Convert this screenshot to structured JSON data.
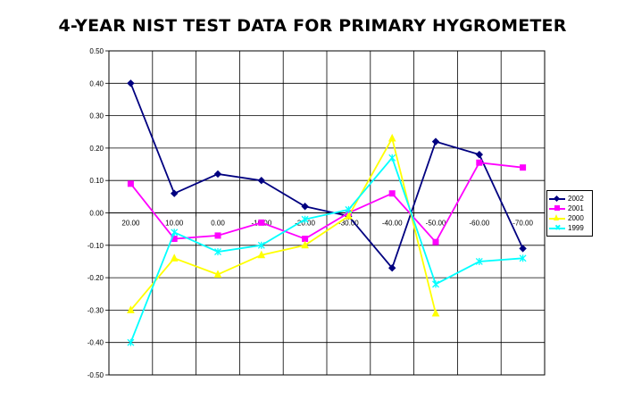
{
  "chart_data": {
    "type": "line",
    "title": "4-YEAR NIST TEST DATA FOR PRIMARY HYGROMETER",
    "xlabel": "",
    "ylabel": "",
    "categories": [
      "20.00",
      "10.00",
      "0.00",
      "-10.00",
      "-20.00",
      "-30.00",
      "-40.00",
      "-50.00",
      "-60.00",
      "-70.00"
    ],
    "ylim": [
      -0.5,
      0.5
    ],
    "yticks": [
      "0.50",
      "0.40",
      "0.30",
      "0.20",
      "0.10",
      "0.00",
      "-0.10",
      "-0.20",
      "-0.30",
      "-0.40",
      "-0.50"
    ],
    "grid": true,
    "legend_position": "right",
    "series": [
      {
        "name": "2002",
        "color": "#000080",
        "marker": "diamond",
        "values": [
          0.4,
          0.06,
          0.12,
          0.1,
          0.02,
          -0.01,
          -0.17,
          0.22,
          0.18,
          -0.11
        ]
      },
      {
        "name": "2001",
        "color": "#ff00ff",
        "marker": "square",
        "values": [
          0.09,
          -0.08,
          -0.07,
          -0.03,
          -0.08,
          0.0,
          0.06,
          -0.09,
          0.155,
          0.14
        ]
      },
      {
        "name": "2000",
        "color": "#ffff00",
        "marker": "triangle",
        "values": [
          -0.3,
          -0.14,
          -0.19,
          -0.13,
          -0.1,
          -0.01,
          0.23,
          -0.31,
          null,
          null
        ]
      },
      {
        "name": "1999",
        "color": "#00ffff",
        "marker": "x",
        "values": [
          -0.4,
          -0.06,
          -0.12,
          -0.1,
          -0.02,
          0.01,
          0.17,
          -0.22,
          -0.15,
          -0.14
        ]
      }
    ]
  }
}
